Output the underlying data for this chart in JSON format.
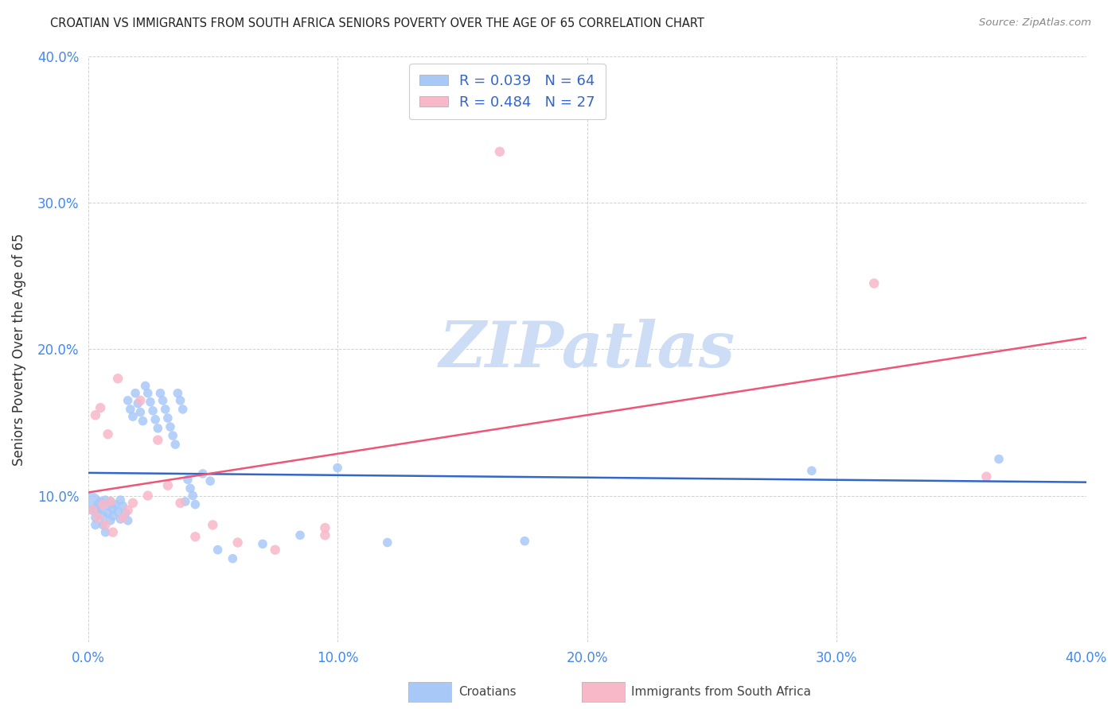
{
  "title": "CROATIAN VS IMMIGRANTS FROM SOUTH AFRICA SENIORS POVERTY OVER THE AGE OF 65 CORRELATION CHART",
  "source": "Source: ZipAtlas.com",
  "ylabel": "Seniors Poverty Over the Age of 65",
  "xlim": [
    0.0,
    0.4
  ],
  "ylim": [
    0.0,
    0.4
  ],
  "xticks": [
    0.0,
    0.1,
    0.2,
    0.3,
    0.4
  ],
  "yticks": [
    0.1,
    0.2,
    0.3,
    0.4
  ],
  "xtick_labels": [
    "0.0%",
    "10.0%",
    "20.0%",
    "30.0%",
    "40.0%"
  ],
  "ytick_labels": [
    "10.0%",
    "20.0%",
    "30.0%",
    "40.0%"
  ],
  "croatian_color": "#a8c8f8",
  "sa_color": "#f8b8c8",
  "trendline_croatian_color": "#3366cc",
  "trendline_sa_color": "#ee5577",
  "legend_text_color": "#3366cc",
  "R_croatian": 0.039,
  "N_croatian": 64,
  "R_sa": 0.484,
  "N_sa": 27,
  "croatian_x": [
    0.001,
    0.002,
    0.003,
    0.003,
    0.004,
    0.004,
    0.005,
    0.005,
    0.006,
    0.006,
    0.007,
    0.007,
    0.008,
    0.008,
    0.009,
    0.009,
    0.01,
    0.01,
    0.011,
    0.012,
    0.013,
    0.013,
    0.014,
    0.015,
    0.016,
    0.016,
    0.017,
    0.018,
    0.019,
    0.02,
    0.021,
    0.022,
    0.023,
    0.024,
    0.025,
    0.026,
    0.027,
    0.028,
    0.029,
    0.03,
    0.031,
    0.032,
    0.033,
    0.034,
    0.035,
    0.036,
    0.037,
    0.038,
    0.039,
    0.04,
    0.041,
    0.042,
    0.043,
    0.046,
    0.049,
    0.052,
    0.058,
    0.07,
    0.085,
    0.1,
    0.12,
    0.175,
    0.29,
    0.365
  ],
  "croatian_y": [
    0.095,
    0.09,
    0.085,
    0.08,
    0.094,
    0.088,
    0.096,
    0.091,
    0.086,
    0.08,
    0.075,
    0.097,
    0.093,
    0.088,
    0.083,
    0.096,
    0.091,
    0.086,
    0.094,
    0.089,
    0.084,
    0.097,
    0.093,
    0.088,
    0.083,
    0.165,
    0.159,
    0.154,
    0.17,
    0.163,
    0.157,
    0.151,
    0.175,
    0.17,
    0.164,
    0.158,
    0.152,
    0.146,
    0.17,
    0.165,
    0.159,
    0.153,
    0.147,
    0.141,
    0.135,
    0.17,
    0.165,
    0.159,
    0.096,
    0.111,
    0.105,
    0.1,
    0.094,
    0.115,
    0.11,
    0.063,
    0.057,
    0.067,
    0.073,
    0.119,
    0.068,
    0.069,
    0.117,
    0.125
  ],
  "croatian_sizes": [
    400,
    70,
    70,
    70,
    70,
    70,
    70,
    70,
    70,
    70,
    70,
    70,
    70,
    70,
    70,
    70,
    70,
    70,
    70,
    70,
    70,
    70,
    70,
    70,
    70,
    70,
    70,
    70,
    70,
    70,
    70,
    70,
    70,
    70,
    70,
    70,
    70,
    70,
    70,
    70,
    70,
    70,
    70,
    70,
    70,
    70,
    70,
    70,
    70,
    70,
    70,
    70,
    70,
    70,
    70,
    70,
    70,
    70,
    70,
    70,
    70,
    70,
    70,
    70
  ],
  "sa_x": [
    0.002,
    0.003,
    0.004,
    0.005,
    0.006,
    0.007,
    0.008,
    0.009,
    0.01,
    0.012,
    0.014,
    0.016,
    0.018,
    0.021,
    0.024,
    0.028,
    0.032,
    0.037,
    0.043,
    0.05,
    0.06,
    0.075,
    0.095,
    0.095,
    0.165,
    0.315,
    0.36
  ],
  "sa_y": [
    0.09,
    0.155,
    0.085,
    0.16,
    0.094,
    0.08,
    0.142,
    0.096,
    0.075,
    0.18,
    0.085,
    0.09,
    0.095,
    0.165,
    0.1,
    0.138,
    0.107,
    0.095,
    0.072,
    0.08,
    0.068,
    0.063,
    0.073,
    0.078,
    0.335,
    0.245,
    0.113
  ],
  "background_color": "#ffffff",
  "grid_color": "#cccccc",
  "watermark_text": "ZIPatlas",
  "watermark_color": "#ccddf5"
}
